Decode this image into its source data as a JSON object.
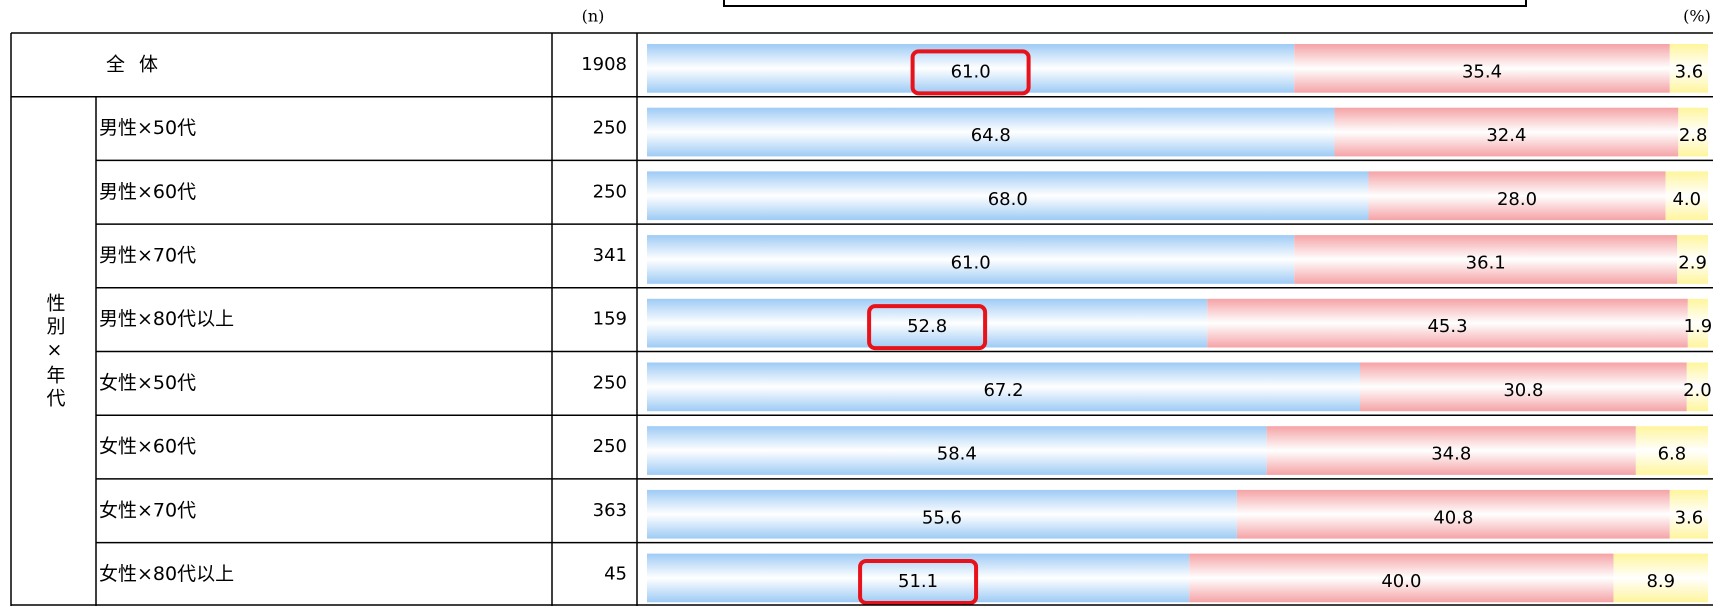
{
  "chart_data": {
    "type": "stacked-bar",
    "orientation": "horizontal",
    "n_label": "(n)",
    "unit_label": "(%)",
    "group_label": "性別×年代",
    "categories": [
      "全 体",
      "男性×50代",
      "男性×60代",
      "男性×70代",
      "男性×80代以上",
      "女性×50代",
      "女性×60代",
      "女性×70代",
      "女性×80代以上"
    ],
    "n": [
      1908,
      250,
      250,
      341,
      159,
      250,
      250,
      363,
      45
    ],
    "xlim": [
      0,
      100
    ],
    "series": [
      {
        "color": "#9ecbf5",
        "values": [
          61.0,
          64.8,
          68.0,
          61.0,
          52.8,
          67.2,
          58.4,
          55.6,
          51.1
        ],
        "value_labels": [
          "61.0",
          "64.8",
          "68.0",
          "61.0",
          "52.8",
          "67.2",
          "58.4",
          "55.6",
          "51.1"
        ]
      },
      {
        "color": "#f5a3a6",
        "values": [
          35.4,
          32.4,
          28.0,
          36.1,
          45.3,
          30.8,
          34.8,
          40.8,
          40.0
        ],
        "value_labels": [
          "35.4",
          "32.4",
          "28.0",
          "36.1",
          "45.3",
          "30.8",
          "34.8",
          "40.8",
          "40.0"
        ]
      },
      {
        "color": "#fff59c",
        "values": [
          3.6,
          2.8,
          4.0,
          2.9,
          1.9,
          2.0,
          6.8,
          3.6,
          8.9
        ],
        "value_labels": [
          "3.6",
          "2.8",
          "4.0",
          "2.9",
          "1.9",
          "2.0",
          "6.8",
          "3.6",
          "8.9"
        ]
      }
    ],
    "highlight": {
      "series": 0,
      "indices": [
        0,
        4,
        8
      ],
      "color": "#e8121b"
    }
  }
}
